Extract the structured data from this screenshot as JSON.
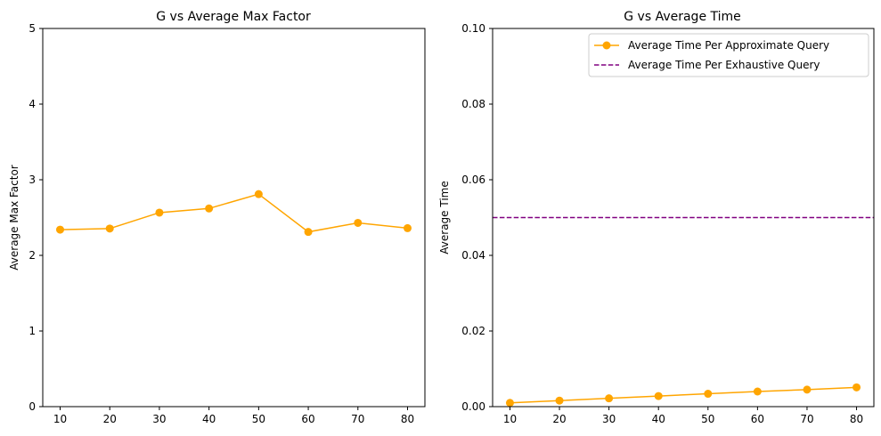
{
  "chart_data": [
    {
      "type": "line",
      "title": "G vs Average Max Factor",
      "xlabel": "",
      "ylabel": "Average Max Factor",
      "x": [
        10,
        20,
        30,
        40,
        50,
        60,
        70,
        80
      ],
      "xlim": [
        6.5,
        83.5
      ],
      "ylim": [
        0,
        5
      ],
      "xticks": [
        "10",
        "20",
        "30",
        "40",
        "50",
        "60",
        "70",
        "80"
      ],
      "yticks": [
        "0",
        "1",
        "2",
        "3",
        "4",
        "5"
      ],
      "grid": false,
      "series": [
        {
          "values": [
            2.34,
            2.355,
            2.565,
            2.62,
            2.81,
            2.31,
            2.43,
            2.36
          ],
          "color": "#ffa500",
          "style": "solid",
          "marker": "circle"
        }
      ]
    },
    {
      "type": "line",
      "title": "G vs Average Time",
      "xlabel": "",
      "ylabel": "Average Time",
      "x": [
        10,
        20,
        30,
        40,
        50,
        60,
        70,
        80
      ],
      "xlim": [
        6.5,
        83.5
      ],
      "ylim": [
        0,
        0.1
      ],
      "xticks": [
        "10",
        "20",
        "30",
        "40",
        "50",
        "60",
        "70",
        "80"
      ],
      "yticks": [
        "0.00",
        "0.02",
        "0.04",
        "0.06",
        "0.08",
        "0.10"
      ],
      "grid": false,
      "legend": "top-right",
      "series": [
        {
          "name": "Average Time Per Approximate Query",
          "values": [
            0.001,
            0.0016,
            0.0022,
            0.0028,
            0.0034,
            0.004,
            0.0045,
            0.0051
          ],
          "color": "#ffa500",
          "style": "solid",
          "marker": "circle"
        },
        {
          "name": "Average Time Per Exhaustive Query",
          "values": [
            0.05,
            0.05,
            0.05,
            0.05,
            0.05,
            0.05,
            0.05,
            0.05
          ],
          "color": "#800080",
          "style": "dashed",
          "marker": "none",
          "span": "full"
        }
      ]
    }
  ]
}
